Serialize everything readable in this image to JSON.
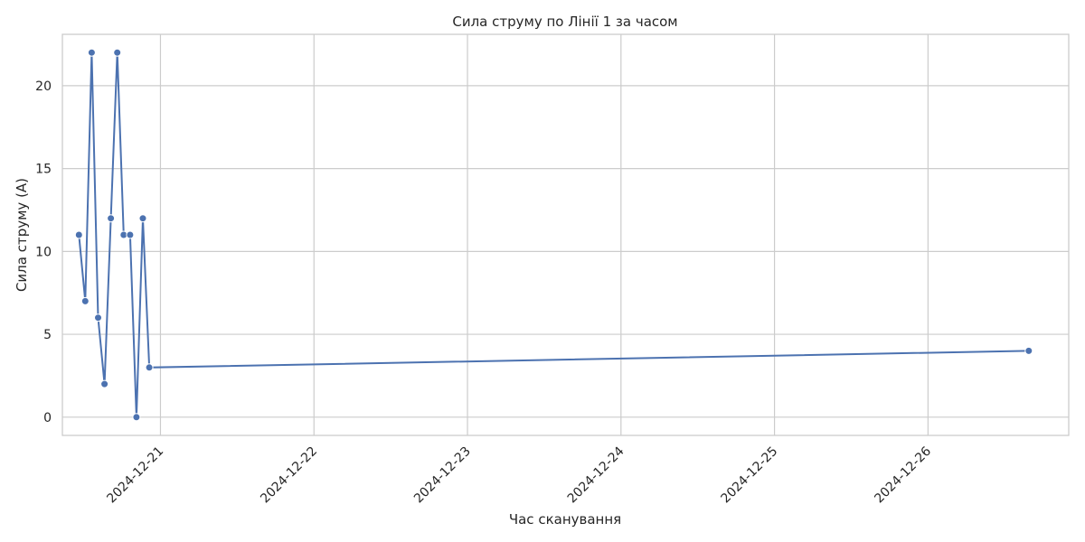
{
  "chart_data": {
    "type": "line",
    "title": "Сила струму по Лінії 1 за часом",
    "xlabel": "Час сканування",
    "ylabel": "Сила струму (А)",
    "x_type": "datetime",
    "xlim": [
      "2024-12-20T08:40",
      "2024-12-26T22:00"
    ],
    "ylim": [
      -1.1,
      23.1
    ],
    "x_ticks": [
      "2024-12-21",
      "2024-12-22",
      "2024-12-23",
      "2024-12-24",
      "2024-12-25",
      "2024-12-26"
    ],
    "y_ticks": [
      0,
      5,
      10,
      15,
      20
    ],
    "grid": true,
    "series": [
      {
        "color": "#4c72b0",
        "points": [
          {
            "x": "2024-12-20T11:15",
            "y": 11
          },
          {
            "x": "2024-12-20T12:15",
            "y": 7
          },
          {
            "x": "2024-12-20T13:15",
            "y": 22
          },
          {
            "x": "2024-12-20T14:15",
            "y": 6
          },
          {
            "x": "2024-12-20T15:15",
            "y": 2
          },
          {
            "x": "2024-12-20T16:15",
            "y": 12
          },
          {
            "x": "2024-12-20T17:15",
            "y": 22
          },
          {
            "x": "2024-12-20T18:15",
            "y": 11
          },
          {
            "x": "2024-12-20T19:15",
            "y": 11
          },
          {
            "x": "2024-12-20T20:15",
            "y": 0
          },
          {
            "x": "2024-12-20T21:15",
            "y": 12
          },
          {
            "x": "2024-12-20T22:15",
            "y": 3
          },
          {
            "x": "2024-12-26T15:45",
            "y": 4
          }
        ]
      }
    ]
  }
}
